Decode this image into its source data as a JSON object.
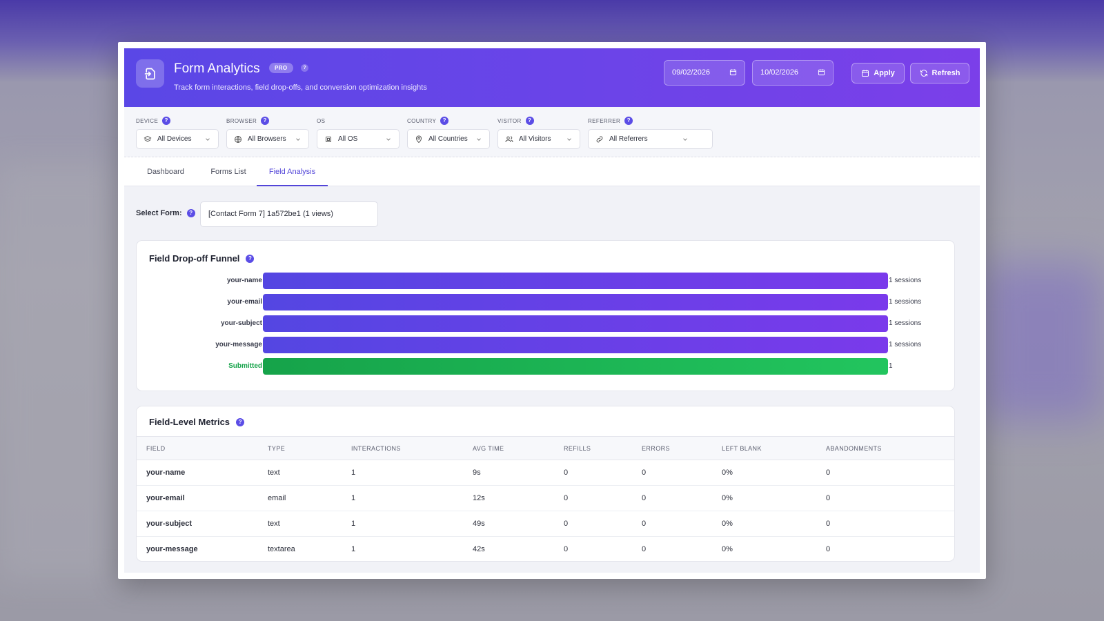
{
  "header": {
    "title": "Form Analytics",
    "badge": "PRO",
    "help": "?",
    "subtitle": "Track form interactions, field drop-offs, and conversion optimization insights",
    "date_start": "09/02/2026",
    "date_end": "10/02/2026",
    "apply_label": "Apply",
    "refresh_label": "Refresh"
  },
  "filters": [
    {
      "label": "DEVICE",
      "value": "All Devices",
      "icon": "layers-icon"
    },
    {
      "label": "BROWSER",
      "value": "All Browsers",
      "icon": "globe-icon"
    },
    {
      "label": "OS",
      "value": "All OS",
      "icon": "chip-icon"
    },
    {
      "label": "COUNTRY",
      "value": "All Countries",
      "icon": "map-pin-icon"
    },
    {
      "label": "VISITOR",
      "value": "All Visitors",
      "icon": "users-icon"
    },
    {
      "label": "REFERRER",
      "value": "All Referrers",
      "icon": "link-icon"
    }
  ],
  "tabs": [
    {
      "label": "Dashboard",
      "active": false
    },
    {
      "label": "Forms List",
      "active": false
    },
    {
      "label": "Field Analysis",
      "active": true
    }
  ],
  "select_form": {
    "label": "Select Form:",
    "value": "[Contact Form 7] 1a572be1 (1 views)"
  },
  "funnel": {
    "title": "Field Drop-off Funnel",
    "rows": [
      {
        "label": "your-name",
        "count": "1 sessions",
        "fraction": 1.0
      },
      {
        "label": "your-email",
        "count": "1 sessions",
        "fraction": 1.0
      },
      {
        "label": "your-subject",
        "count": "1 sessions",
        "fraction": 1.0
      },
      {
        "label": "your-message",
        "count": "1 sessions",
        "fraction": 1.0
      },
      {
        "label": "Submitted",
        "count": "1",
        "fraction": 1.0
      }
    ]
  },
  "metrics": {
    "title": "Field-Level Metrics",
    "columns": [
      "FIELD",
      "TYPE",
      "INTERACTIONS",
      "AVG TIME",
      "REFILLS",
      "ERRORS",
      "LEFT BLANK",
      "ABANDONMENTS"
    ],
    "rows": [
      [
        "your-name",
        "text",
        "1",
        "9s",
        "0",
        "0",
        "0%",
        "0"
      ],
      [
        "your-email",
        "email",
        "1",
        "12s",
        "0",
        "0",
        "0%",
        "0"
      ],
      [
        "your-subject",
        "text",
        "1",
        "49s",
        "0",
        "0",
        "0%",
        "0"
      ],
      [
        "your-message",
        "textarea",
        "1",
        "42s",
        "0",
        "0",
        "0%",
        "0"
      ]
    ]
  },
  "colors": {
    "accent": "#5245d8",
    "header_start": "#5a47e6",
    "header_end": "#7b3fe9",
    "success": "#16a34a"
  }
}
